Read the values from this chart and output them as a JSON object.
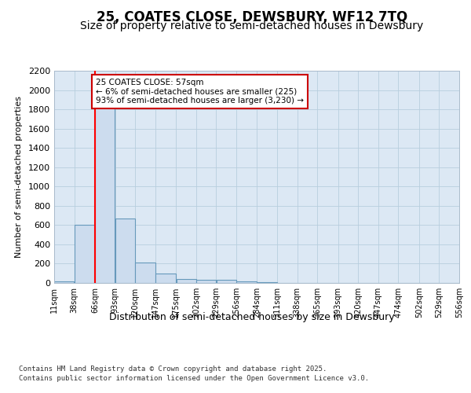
{
  "title": "25, COATES CLOSE, DEWSBURY, WF12 7TQ",
  "subtitle": "Size of property relative to semi-detached houses in Dewsbury",
  "xlabel": "Distribution of semi-detached houses by size in Dewsbury",
  "ylabel": "Number of semi-detached properties",
  "annotation_title": "25 COATES CLOSE: 57sqm",
  "annotation_line1": "← 6% of semi-detached houses are smaller (225)",
  "annotation_line2": "93% of semi-detached houses are larger (3,230) →",
  "footer1": "Contains HM Land Registry data © Crown copyright and database right 2025.",
  "footer2": "Contains public sector information licensed under the Open Government Licence v3.0.",
  "property_size_sqm": 57,
  "bar_left_edges": [
    11,
    38,
    66,
    93,
    120,
    147,
    175,
    202,
    229,
    256,
    284,
    311,
    338,
    365,
    393,
    420,
    447,
    474,
    502,
    529
  ],
  "bar_widths": [
    27,
    28,
    27,
    27,
    27,
    28,
    27,
    27,
    27,
    28,
    27,
    27,
    27,
    28,
    27,
    27,
    27,
    28,
    27,
    27
  ],
  "bar_heights": [
    20,
    600,
    1820,
    670,
    215,
    95,
    40,
    35,
    35,
    20,
    5,
    0,
    0,
    0,
    0,
    0,
    0,
    0,
    0,
    0
  ],
  "bar_color": "#ccdcee",
  "bar_edge_color": "#6699bb",
  "red_line_x": 66,
  "ylim": [
    0,
    2200
  ],
  "yticks": [
    0,
    200,
    400,
    600,
    800,
    1000,
    1200,
    1400,
    1600,
    1800,
    2000,
    2200
  ],
  "bg_color": "#ffffff",
  "plot_bg_color": "#dce8f4",
  "grid_color": "#b8cede",
  "annotation_box_color": "#ffffff",
  "annotation_box_edge": "#cc0000",
  "title_fontsize": 12,
  "subtitle_fontsize": 10,
  "tick_labels": [
    "11sqm",
    "38sqm",
    "66sqm",
    "93sqm",
    "120sqm",
    "147sqm",
    "175sqm",
    "202sqm",
    "229sqm",
    "256sqm",
    "284sqm",
    "311sqm",
    "338sqm",
    "365sqm",
    "393sqm",
    "420sqm",
    "447sqm",
    "474sqm",
    "502sqm",
    "529sqm",
    "556sqm"
  ]
}
